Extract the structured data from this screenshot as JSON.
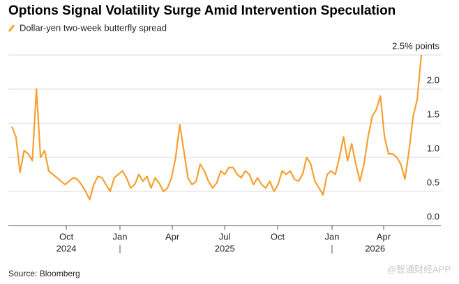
{
  "chart_data": {
    "type": "line",
    "title": "Options Signal Volatility Surge Amid Intervention Speculation",
    "source": "Source: Bloomberg",
    "watermark": "@智通财经APP",
    "series": [
      {
        "name": "Dollar-yen two-week butterfly spread",
        "color": "#f5a030",
        "values": [
          1.45,
          1.3,
          0.78,
          1.1,
          1.05,
          0.95,
          2.0,
          1.0,
          1.1,
          0.8,
          0.75,
          0.7,
          0.65,
          0.6,
          0.65,
          0.7,
          0.68,
          0.6,
          0.5,
          0.38,
          0.6,
          0.72,
          0.7,
          0.6,
          0.5,
          0.7,
          0.75,
          0.8,
          0.7,
          0.55,
          0.6,
          0.75,
          0.65,
          0.72,
          0.55,
          0.7,
          0.62,
          0.5,
          0.55,
          0.7,
          1.0,
          1.48,
          1.1,
          0.7,
          0.6,
          0.65,
          0.9,
          0.8,
          0.65,
          0.55,
          0.62,
          0.8,
          0.75,
          0.85,
          0.85,
          0.75,
          0.7,
          0.8,
          0.75,
          0.6,
          0.7,
          0.6,
          0.55,
          0.65,
          0.5,
          0.6,
          0.8,
          0.75,
          0.8,
          0.68,
          0.65,
          0.75,
          1.0,
          0.9,
          0.65,
          0.55,
          0.45,
          0.75,
          0.8,
          0.75,
          1.0,
          1.3,
          0.95,
          1.2,
          0.9,
          0.65,
          0.9,
          1.3,
          1.6,
          1.7,
          1.9,
          1.3,
          1.05,
          1.05,
          1.0,
          0.9,
          0.68,
          1.1,
          1.6,
          1.85,
          2.5
        ]
      }
    ],
    "xlim": [
      0,
      100
    ],
    "xticks": [
      {
        "value": 13.3,
        "label": "Oct"
      },
      {
        "value": 26.4,
        "label": "Jan"
      },
      {
        "value": 39.2,
        "label": "Apr"
      },
      {
        "value": 52.0,
        "label": "Jul"
      },
      {
        "value": 64.9,
        "label": "Oct"
      },
      {
        "value": 78.2,
        "label": "Jan"
      },
      {
        "value": 90.8,
        "label": "Apr"
      }
    ],
    "year_labels": [
      {
        "value": 13.3,
        "label": "2024"
      },
      {
        "value": 52.0,
        "label": "2025"
      },
      {
        "value": 88.7,
        "label": "2026"
      }
    ],
    "ylim": [
      0,
      2.5
    ],
    "yticks": [
      {
        "value": 0,
        "label": "0.0"
      },
      0.5,
      {
        "value": 1,
        "label": "1.0"
      },
      1.5,
      {
        "value": 2,
        "label": "2.0"
      },
      {
        "value": 2.5,
        "label": "2.5% points"
      }
    ],
    "grid": true
  }
}
